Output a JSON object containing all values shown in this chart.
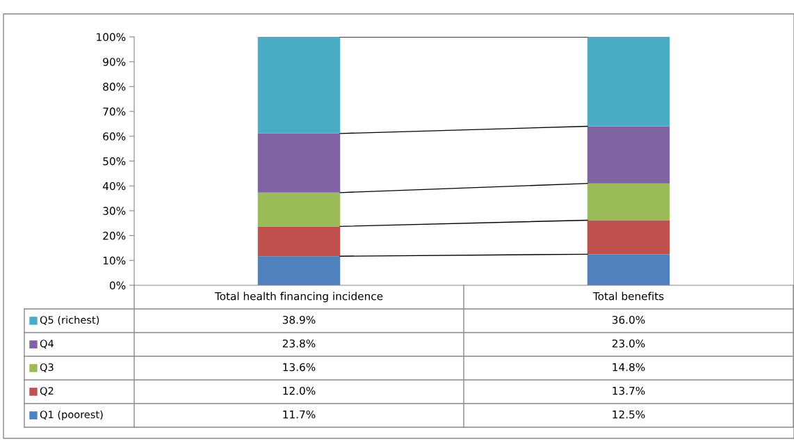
{
  "chart_data": {
    "type": "bar",
    "stacked": true,
    "categories": [
      "Total health financing incidence",
      "Total benefits"
    ],
    "series": [
      {
        "name": "Q1 (poorest)",
        "color": "#4f81bd",
        "values": [
          11.7,
          12.5
        ],
        "value_labels": [
          "11.7%",
          "12.5%"
        ]
      },
      {
        "name": "Q2",
        "color": "#c0504d",
        "values": [
          12.0,
          13.7
        ],
        "value_labels": [
          "12.0%",
          "13.7%"
        ]
      },
      {
        "name": "Q3",
        "color": "#9bbb59",
        "values": [
          13.6,
          14.8
        ],
        "value_labels": [
          "13.6%",
          "14.8%"
        ]
      },
      {
        "name": "Q4",
        "color": "#8064a2",
        "values": [
          23.8,
          23.0
        ],
        "value_labels": [
          "23.8%",
          "23.0%"
        ]
      },
      {
        "name": "Q5 (richest)",
        "color": "#4bacc6",
        "values": [
          38.9,
          36.0
        ],
        "value_labels": [
          "38.9%",
          "36.0%"
        ]
      }
    ],
    "ylim": [
      0,
      100
    ],
    "yticks": [
      {
        "value": 0,
        "label": "0%"
      },
      {
        "value": 10,
        "label": "10%"
      },
      {
        "value": 20,
        "label": "20%"
      },
      {
        "value": 30,
        "label": "30%"
      },
      {
        "value": 40,
        "label": "40%"
      },
      {
        "value": 50,
        "label": "50%"
      },
      {
        "value": 60,
        "label": "60%"
      },
      {
        "value": 70,
        "label": "70%"
      },
      {
        "value": 80,
        "label": "80%"
      },
      {
        "value": 90,
        "label": "90%"
      },
      {
        "value": 100,
        "label": "100%"
      }
    ],
    "grid": false,
    "legend": "bottom left"
  }
}
